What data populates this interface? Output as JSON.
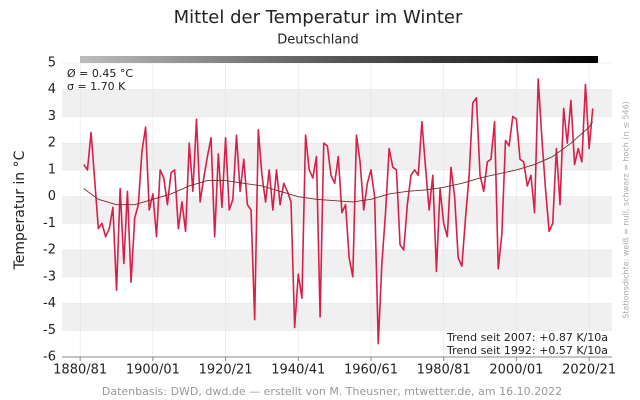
{
  "chart_data": {
    "type": "line",
    "title": "Mittel der Temperatur im Winter",
    "subtitle": "Deutschland",
    "y_label": "Temperatur in °C",
    "side_note": "Stationsdichte: weiß = null, schwarz = hoch (n ≤ 546)",
    "source": "Datenbasis: DWD, dwd.de — erstellt von M. Theusner, mtwetter.de, am 16.10.2022",
    "stats": [
      "Ø = 0.45 °C",
      "σ = 1.70 K"
    ],
    "trends": [
      "Trend seit 2007: +0.87 K/10a",
      "Trend seit 1992: +0.57 K/10a"
    ],
    "xlim": [
      1875,
      2026.3
    ],
    "xticks": [
      {
        "value": 1880,
        "label": "1880/81"
      },
      {
        "value": 1900,
        "label": "1900/01"
      },
      {
        "value": 1920,
        "label": "1920/21"
      },
      {
        "value": 1940,
        "label": "1940/41"
      },
      {
        "value": 1960,
        "label": "1960/61"
      },
      {
        "value": 1980,
        "label": "1980/81"
      },
      {
        "value": 2000,
        "label": "2000/01"
      },
      {
        "value": 2020,
        "label": "2020/21"
      }
    ],
    "ylim": [
      -6,
      5
    ],
    "yticks": [
      -6,
      -5,
      -4,
      -3,
      -2,
      -1,
      0,
      1,
      2,
      3,
      4,
      5
    ],
    "grid": true,
    "x": [
      1881,
      1882,
      1883,
      1884,
      1885,
      1886,
      1887,
      1888,
      1889,
      1890,
      1891,
      1892,
      1893,
      1894,
      1895,
      1896,
      1897,
      1898,
      1899,
      1900,
      1901,
      1902,
      1903,
      1904,
      1905,
      1906,
      1907,
      1908,
      1909,
      1910,
      1911,
      1912,
      1913,
      1914,
      1915,
      1916,
      1917,
      1918,
      1919,
      1920,
      1921,
      1922,
      1923,
      1924,
      1925,
      1926,
      1927,
      1928,
      1929,
      1930,
      1931,
      1932,
      1933,
      1934,
      1935,
      1936,
      1937,
      1938,
      1939,
      1940,
      1941,
      1942,
      1943,
      1944,
      1945,
      1946,
      1947,
      1948,
      1949,
      1950,
      1951,
      1952,
      1953,
      1954,
      1955,
      1956,
      1957,
      1958,
      1959,
      1960,
      1961,
      1962,
      1963,
      1964,
      1965,
      1966,
      1967,
      1968,
      1969,
      1970,
      1971,
      1972,
      1973,
      1974,
      1975,
      1976,
      1977,
      1978,
      1979,
      1980,
      1981,
      1982,
      1983,
      1984,
      1985,
      1986,
      1987,
      1988,
      1989,
      1990,
      1991,
      1992,
      1993,
      1994,
      1995,
      1996,
      1997,
      1998,
      1999,
      2000,
      2001,
      2002,
      2003,
      2004,
      2005,
      2006,
      2007,
      2008,
      2009,
      2010,
      2011,
      2012,
      2013,
      2014,
      2015,
      2016,
      2017,
      2018,
      2019,
      2020,
      2021
    ],
    "series": [
      {
        "color": "#d81f4a",
        "values": [
          1.2,
          1.0,
          2.4,
          0.6,
          -1.2,
          -1.0,
          -1.5,
          -1.2,
          -0.4,
          -3.5,
          0.3,
          -2.5,
          0.2,
          -3.2,
          -0.8,
          -0.3,
          1.7,
          2.6,
          -0.5,
          0.1,
          -1.5,
          1.0,
          0.7,
          -0.3,
          0.9,
          1.0,
          -1.2,
          -0.2,
          -1.3,
          2.0,
          0.2,
          2.9,
          -0.2,
          0.7,
          1.5,
          2.2,
          -1.5,
          1.6,
          -0.4,
          2.2,
          -0.5,
          -0.1,
          2.3,
          0.2,
          1.4,
          -0.3,
          -0.5,
          -4.6,
          2.5,
          0.8,
          -0.2,
          1.0,
          -0.5,
          1.0,
          -0.3,
          0.5,
          0.2,
          -0.2,
          -4.9,
          -2.9,
          -3.8,
          2.3,
          1.0,
          0.7,
          1.5,
          -4.5,
          2.0,
          1.9,
          0.8,
          0.5,
          1.5,
          -0.6,
          -0.3,
          -2.3,
          -3.0,
          2.3,
          1.3,
          -0.5,
          0.5,
          1.0,
          0.0,
          -5.5,
          -2.5,
          -0.6,
          1.8,
          1.1,
          1.0,
          -1.8,
          -2.0,
          -0.3,
          0.8,
          1.0,
          0.8,
          2.8,
          1.1,
          -0.5,
          0.8,
          -2.8,
          0.3,
          -1.0,
          -1.5,
          1.1,
          0.0,
          -2.3,
          -2.6,
          -0.8,
          0.8,
          3.5,
          3.7,
          0.8,
          0.2,
          1.3,
          1.4,
          2.8,
          -2.7,
          -1.4,
          2.1,
          1.9,
          3.0,
          2.9,
          1.4,
          1.3,
          0.4,
          0.8,
          -0.6,
          4.4,
          2.2,
          0.3,
          -1.3,
          -1.0,
          1.8,
          -0.3,
          3.3,
          2.0,
          3.6,
          1.2,
          1.8,
          1.3,
          4.2,
          1.8,
          3.3
        ]
      },
      {
        "color": "#7a2a2a",
        "x": [
          1881,
          1885,
          1890,
          1895,
          1900,
          1905,
          1910,
          1915,
          1920,
          1925,
          1930,
          1935,
          1940,
          1945,
          1950,
          1955,
          1960,
          1965,
          1970,
          1975,
          1980,
          1985,
          1990,
          1995,
          2000,
          2005,
          2010,
          2015,
          2020,
          2021
        ],
        "values": [
          0.3,
          -0.1,
          -0.3,
          -0.3,
          -0.1,
          0.1,
          0.4,
          0.6,
          0.6,
          0.5,
          0.4,
          0.2,
          0.0,
          -0.1,
          -0.15,
          -0.2,
          -0.1,
          0.1,
          0.2,
          0.25,
          0.35,
          0.5,
          0.7,
          0.85,
          1.0,
          1.2,
          1.5,
          2.0,
          2.6,
          2.8
        ]
      }
    ]
  }
}
